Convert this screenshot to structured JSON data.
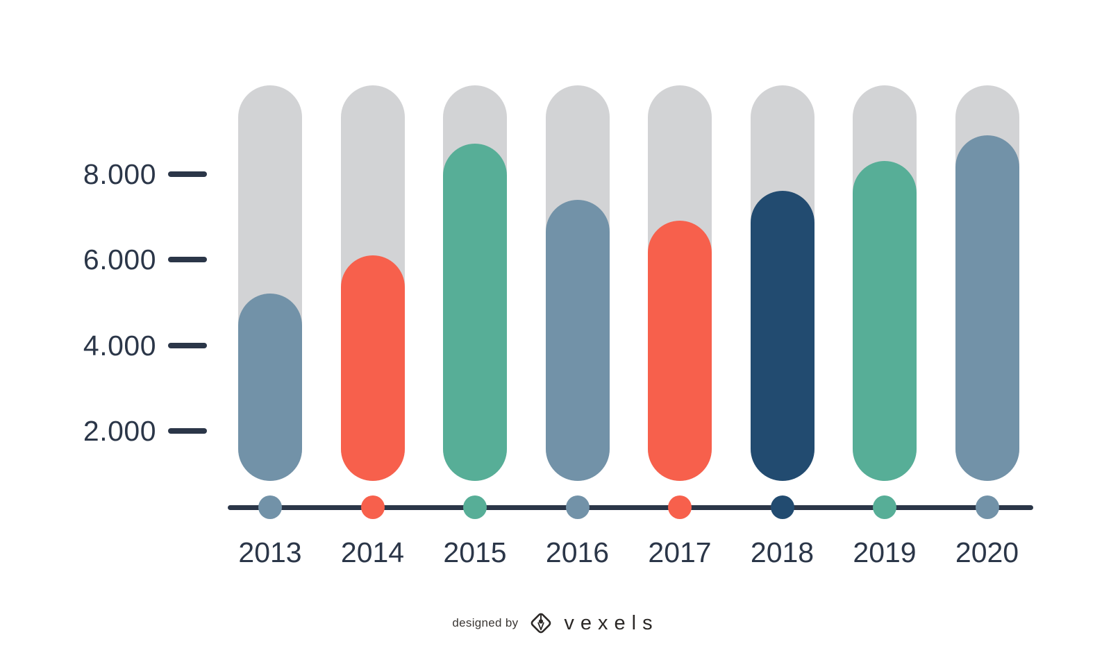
{
  "chart_data": {
    "type": "bar",
    "categories": [
      "2013",
      "2014",
      "2015",
      "2016",
      "2017",
      "2018",
      "2019",
      "2020"
    ],
    "values": [
      5200,
      6100,
      8700,
      7400,
      6900,
      7600,
      8300,
      8900
    ],
    "bar_colors": [
      "#7292A8",
      "#F7604C",
      "#57AE97",
      "#7292A8",
      "#F7604C",
      "#224B70",
      "#57AE97",
      "#7292A8"
    ],
    "track_color": "#D2D3D5",
    "track_max": 10000,
    "axis_color": "#2B3648",
    "y_tick_labels": [
      "8.000",
      "6.000",
      "4.000",
      "2.000"
    ],
    "y_tick_values": [
      8000,
      6000,
      4000,
      2000
    ],
    "ylim": [
      0,
      10000
    ],
    "grid": false,
    "legend": "none"
  },
  "footer": {
    "designed_by": "designed by",
    "brand": "vexels"
  }
}
